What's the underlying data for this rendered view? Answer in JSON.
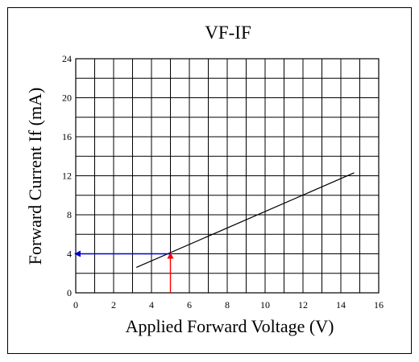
{
  "chart_data": {
    "type": "line",
    "title": "VF-IF",
    "xlabel": "Applied Forward Voltage (V)",
    "ylabel": "Forward Current If (mA)",
    "xlim": [
      0,
      16
    ],
    "ylim": [
      0,
      24
    ],
    "x_ticks": [
      "0",
      "2",
      "4",
      "6",
      "8",
      "10",
      "12",
      "14",
      "16"
    ],
    "y_ticks": [
      "0",
      "4",
      "8",
      "12",
      "16",
      "20",
      "24"
    ],
    "grid": true,
    "series": [
      {
        "x": [
          3.2,
          14.7
        ],
        "y": [
          2.6,
          12.3
        ]
      }
    ],
    "annotations": [
      {
        "type": "arrow",
        "color": "#ff0000",
        "from": [
          5.0,
          0
        ],
        "to": [
          5.0,
          4.0
        ]
      },
      {
        "type": "arrow",
        "color": "#0000cc",
        "from": [
          5.0,
          4.0
        ],
        "to": [
          0,
          4.0
        ]
      }
    ]
  }
}
